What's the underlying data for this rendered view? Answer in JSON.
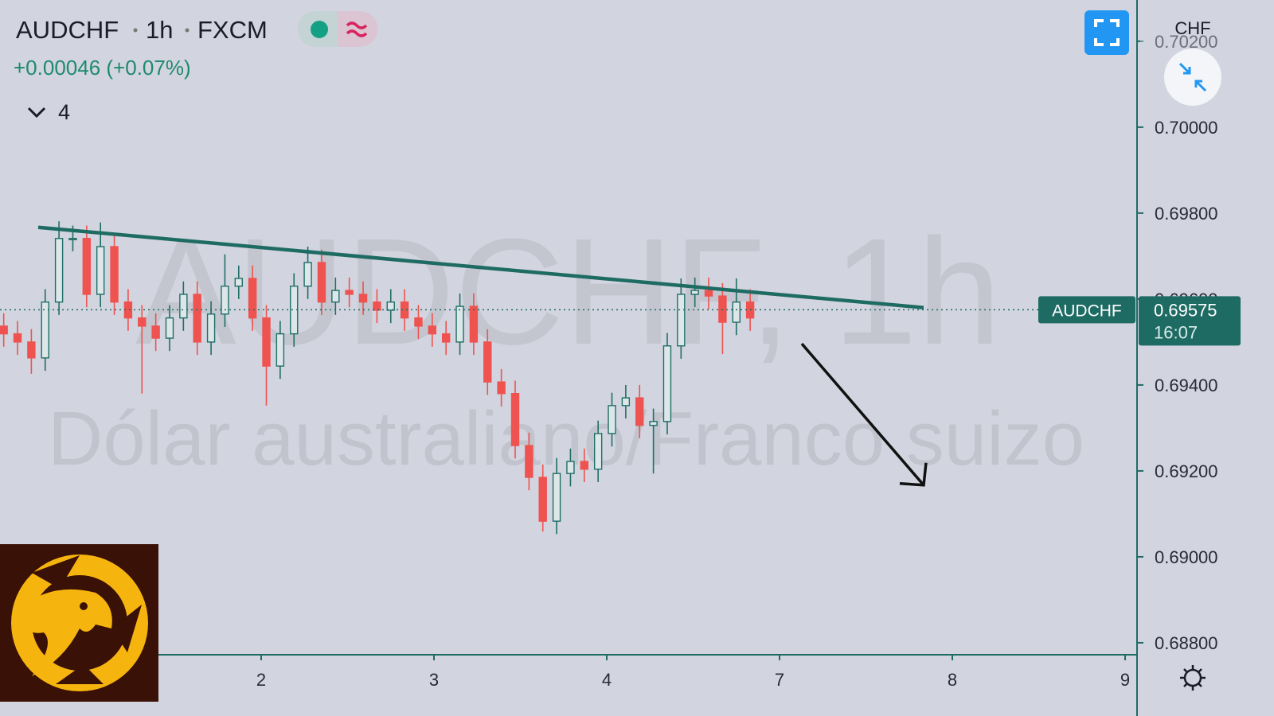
{
  "chart_data": {
    "type": "candlestick",
    "symbol": "AUDCHF",
    "interval": "1h",
    "exchange": "FXCM",
    "change": "+0.00046 (+0.07%)",
    "indicator_count": "4",
    "watermark": "AUDCHF, 1h",
    "watermark_subtitle": "Dólar australiano/Franco suizo",
    "currency": "CHF",
    "up_color": "#1f6f66",
    "down_color": "#ef5350",
    "x": [
      0.51,
      0.59,
      0.67,
      0.75,
      0.83,
      0.91,
      0.99,
      1.07,
      1.15,
      1.23,
      1.31,
      1.39,
      1.47,
      1.55,
      1.63,
      1.71,
      1.79,
      1.87,
      1.95,
      2.03,
      2.11,
      2.19,
      2.27,
      2.35,
      2.43,
      2.51,
      2.59,
      2.67,
      2.75,
      2.83,
      2.91,
      2.99,
      3.07,
      3.15,
      3.23,
      3.31,
      3.39,
      3.47,
      3.55,
      3.63,
      3.71,
      3.79,
      3.87,
      3.95,
      4.03,
      4.11,
      4.19,
      4.27,
      4.35,
      4.43,
      4.51,
      4.59,
      4.67,
      4.75,
      4.83
    ],
    "open": [
      0.69537,
      0.69519,
      0.695,
      0.69463,
      0.69593,
      0.69741,
      0.69741,
      0.69611,
      0.69722,
      0.69593,
      0.69556,
      0.69537,
      0.69509,
      0.69556,
      0.69611,
      0.695,
      0.69565,
      0.6963,
      0.69648,
      0.69556,
      0.69444,
      0.69519,
      0.6963,
      0.69685,
      0.69593,
      0.6962,
      0.69611,
      0.69593,
      0.69574,
      0.69593,
      0.69556,
      0.69537,
      0.69519,
      0.695,
      0.69583,
      0.695,
      0.69407,
      0.6938,
      0.69259,
      0.69185,
      0.69083,
      0.69194,
      0.69222,
      0.69204,
      0.69287,
      0.69352,
      0.6937,
      0.69306,
      0.69315,
      0.69491,
      0.69611,
      0.6962,
      0.69607,
      0.69546,
      0.69593
    ],
    "high": [
      0.69567,
      0.69549,
      0.6953,
      0.69623,
      0.69781,
      0.69771,
      0.69771,
      0.69778,
      0.69752,
      0.69623,
      0.69586,
      0.69567,
      0.69586,
      0.69641,
      0.69641,
      0.69595,
      0.69704,
      0.69678,
      0.69678,
      0.69586,
      0.69549,
      0.6966,
      0.69722,
      0.69715,
      0.6965,
      0.6965,
      0.69641,
      0.69623,
      0.69623,
      0.69623,
      0.69586,
      0.69567,
      0.69549,
      0.69613,
      0.69613,
      0.6953,
      0.69437,
      0.6941,
      0.69289,
      0.69215,
      0.6923,
      0.69252,
      0.69252,
      0.69317,
      0.69382,
      0.694,
      0.694,
      0.69345,
      0.69521,
      0.69648,
      0.6965,
      0.6965,
      0.69637,
      0.69648,
      0.69623
    ],
    "low": [
      0.69489,
      0.6947,
      0.69426,
      0.69433,
      0.69563,
      0.69711,
      0.69581,
      0.69581,
      0.69563,
      0.69526,
      0.6938,
      0.69479,
      0.69479,
      0.69526,
      0.6947,
      0.6947,
      0.69535,
      0.696,
      0.69526,
      0.69352,
      0.69414,
      0.69489,
      0.696,
      0.69563,
      0.69563,
      0.69581,
      0.69563,
      0.69544,
      0.69544,
      0.69526,
      0.69507,
      0.69489,
      0.6947,
      0.6947,
      0.6947,
      0.69377,
      0.6935,
      0.69229,
      0.69155,
      0.69059,
      0.69053,
      0.69164,
      0.69174,
      0.69174,
      0.69257,
      0.69322,
      0.69276,
      0.69194,
      0.69285,
      0.69461,
      0.69581,
      0.69577,
      0.69472,
      0.69516,
      0.69526
    ],
    "close": [
      0.69519,
      0.695,
      0.69463,
      0.69593,
      0.69741,
      0.69741,
      0.69611,
      0.69722,
      0.69593,
      0.69556,
      0.69537,
      0.69509,
      0.69556,
      0.69611,
      0.695,
      0.69565,
      0.6963,
      0.69648,
      0.69556,
      0.69444,
      0.69519,
      0.6963,
      0.69685,
      0.69593,
      0.6962,
      0.69611,
      0.69593,
      0.69574,
      0.69593,
      0.69556,
      0.69537,
      0.69519,
      0.695,
      0.69583,
      0.695,
      0.69407,
      0.6938,
      0.69259,
      0.69185,
      0.69083,
      0.69194,
      0.69222,
      0.69204,
      0.69287,
      0.69352,
      0.6937,
      0.69306,
      0.69315,
      0.69491,
      0.69611,
      0.6962,
      0.69607,
      0.69546,
      0.69593,
      0.69556
    ],
    "xlim": [
      0.4885,
      7.069
    ],
    "ylim": [
      0.68774,
      0.70296
    ],
    "xticks": [
      2,
      3,
      4,
      {
        "value": 5,
        "label": "7"
      },
      {
        "value": 6,
        "label": "8"
      },
      {
        "value": 7,
        "label": "9"
      }
    ],
    "yticks": [
      {
        "value": 0.688,
        "label": "0.68800"
      },
      {
        "value": 0.69,
        "label": "0.69000"
      },
      {
        "value": 0.692,
        "label": "0.69200"
      },
      {
        "value": 0.694,
        "label": "0.69400"
      },
      {
        "value": 0.696,
        "label": "0.69600"
      },
      {
        "value": 0.698,
        "label": "0.69800"
      },
      {
        "value": 0.7,
        "label": "0.70000"
      },
      {
        "value": 0.702,
        "label": "0.70200"
      }
    ],
    "last_price": 0.69575,
    "price_label": "AUDCHF",
    "countdown": "16:07",
    "trendline": {
      "x": [
        0.7097,
        5.834
      ],
      "y": [
        0.69767,
        0.6958
      ]
    },
    "arrow": {
      "x": [
        5.129,
        5.834
      ],
      "y": [
        0.69496,
        0.69167
      ]
    }
  }
}
